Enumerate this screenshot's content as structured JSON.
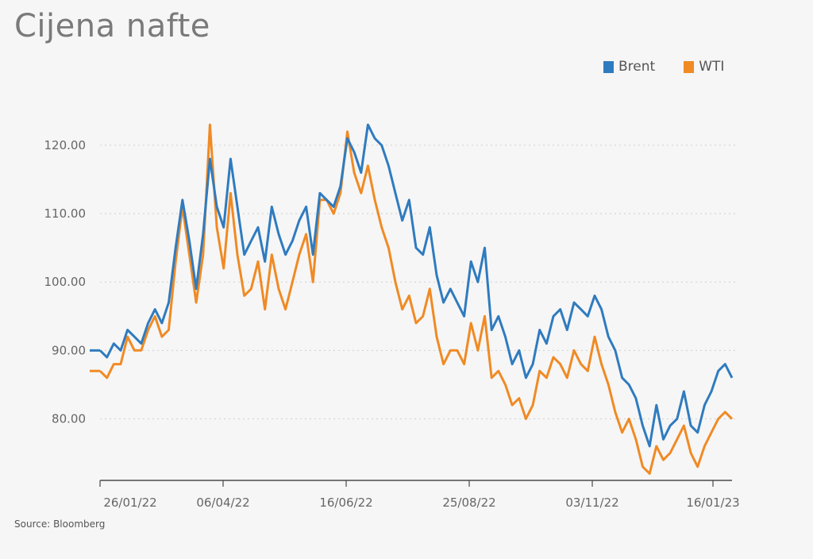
{
  "title": "Cijena nafte",
  "source": "Source: Bloomberg",
  "colors": {
    "brent": "#2f7bbf",
    "wti": "#f08a24",
    "grid": "#cfcfcf",
    "axis": "#4a4a4a"
  },
  "chart_data": {
    "type": "line",
    "title": "Cijena nafte",
    "xlabel": "",
    "ylabel": "",
    "ylim": [
      71,
      128
    ],
    "grid": true,
    "legend_position": "top-right",
    "yticks": [
      80,
      90,
      100,
      110,
      120
    ],
    "ytick_labels": [
      "80.00",
      "90.00",
      "100.00",
      "110.00",
      "120.00"
    ],
    "xtick_labels": [
      "26/01/22",
      "06/04/22",
      "16/06/22",
      "25/08/22",
      "03/11/22",
      "16/01/23"
    ],
    "x": [
      "20/01/22",
      "24/01/22",
      "28/01/22",
      "01/02/22",
      "05/02/22",
      "09/02/22",
      "13/02/22",
      "17/02/22",
      "21/02/22",
      "25/02/22",
      "01/03/22",
      "05/03/22",
      "08/03/22",
      "11/03/22",
      "15/03/22",
      "19/03/22",
      "23/03/22",
      "27/03/22",
      "31/03/22",
      "04/04/22",
      "08/04/22",
      "12/04/22",
      "16/04/22",
      "20/04/22",
      "24/04/22",
      "28/04/22",
      "02/05/22",
      "06/05/22",
      "10/05/22",
      "14/05/22",
      "18/05/22",
      "22/05/22",
      "26/05/22",
      "30/05/22",
      "03/06/22",
      "08/06/22",
      "12/06/22",
      "16/06/22",
      "20/06/22",
      "24/06/22",
      "28/06/22",
      "02/07/22",
      "06/07/22",
      "10/07/22",
      "14/07/22",
      "18/07/22",
      "22/07/22",
      "26/07/22",
      "30/07/22",
      "03/08/22",
      "07/08/22",
      "11/08/22",
      "15/08/22",
      "19/08/22",
      "23/08/22",
      "29/08/22",
      "02/09/22",
      "06/09/22",
      "10/09/22",
      "14/09/22",
      "18/09/22",
      "22/09/22",
      "26/09/22",
      "30/09/22",
      "04/10/22",
      "08/10/22",
      "12/10/22",
      "16/10/22",
      "20/10/22",
      "24/10/22",
      "28/10/22",
      "01/11/22",
      "05/11/22",
      "09/11/22",
      "13/11/22",
      "17/11/22",
      "21/11/22",
      "25/11/22",
      "29/11/22",
      "03/12/22",
      "07/12/22",
      "11/12/22",
      "15/12/22",
      "19/12/22",
      "23/12/22",
      "27/12/22",
      "31/12/22",
      "04/01/23",
      "08/01/23",
      "12/01/23",
      "16/01/23",
      "20/01/23",
      "24/01/23"
    ],
    "series": [
      {
        "name": "Brent",
        "values": [
          90,
          89,
          91,
          90,
          93,
          92,
          91,
          94,
          96,
          94,
          97,
          105,
          112,
          106,
          99,
          107,
          118,
          111,
          108,
          118,
          111,
          104,
          106,
          108,
          103,
          111,
          107,
          104,
          106,
          109,
          111,
          104,
          113,
          112,
          111,
          114,
          121,
          119,
          116,
          123,
          121,
          120,
          117,
          113,
          109,
          112,
          105,
          104,
          108,
          101,
          97,
          99,
          97,
          95,
          103,
          100,
          105,
          93,
          95,
          92,
          88,
          90,
          86,
          88,
          93,
          91,
          95,
          96,
          93,
          97,
          96,
          95,
          98,
          96,
          92,
          90,
          86,
          85,
          83,
          79,
          76,
          82,
          77,
          79,
          80,
          84,
          79,
          78,
          82,
          84,
          87,
          88,
          86
        ]
      },
      {
        "name": "WTI",
        "values": [
          87,
          86,
          88,
          88,
          92,
          90,
          90,
          93,
          95,
          92,
          93,
          103,
          111,
          104,
          97,
          104,
          123,
          108,
          102,
          113,
          104,
          98,
          99,
          103,
          96,
          104,
          99,
          96,
          100,
          104,
          107,
          100,
          112,
          112,
          110,
          113,
          122,
          116,
          113,
          117,
          112,
          108,
          105,
          100,
          96,
          98,
          94,
          95,
          99,
          92,
          88,
          90,
          90,
          88,
          94,
          90,
          95,
          86,
          87,
          85,
          82,
          83,
          80,
          82,
          87,
          86,
          89,
          88,
          86,
          90,
          88,
          87,
          92,
          88,
          85,
          81,
          78,
          80,
          77,
          73,
          72,
          76,
          74,
          75,
          77,
          79,
          75,
          73,
          76,
          78,
          80,
          81,
          80
        ]
      }
    ]
  }
}
